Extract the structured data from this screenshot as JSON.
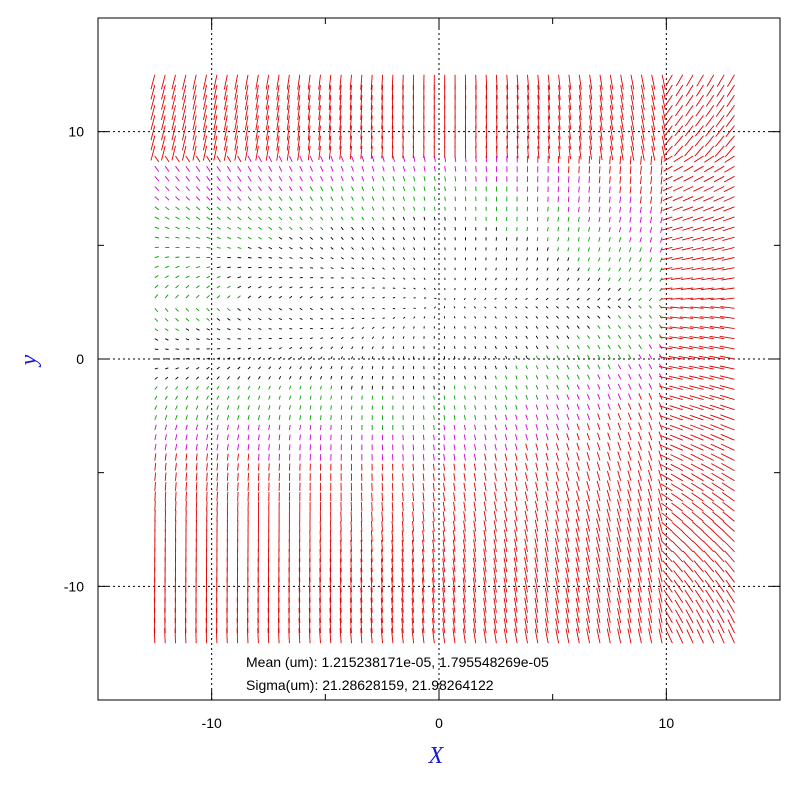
{
  "chart_data": {
    "type": "quiver",
    "xlabel": "X",
    "ylabel": "y",
    "xlim": [
      -15,
      15
    ],
    "ylim": [
      -15,
      15
    ],
    "grid": true,
    "xticks": [
      {
        "value": -10,
        "label": "-10"
      },
      {
        "value": 0,
        "label": "0"
      },
      {
        "value": 10,
        "label": "10"
      }
    ],
    "yticks": [
      {
        "value": 10,
        "label": "10"
      },
      {
        "value": 0,
        "label": "0"
      },
      {
        "value": -10,
        "label": "-10"
      }
    ],
    "field": {
      "x_range": [
        -12.5,
        13.0
      ],
      "y_range": [
        -12.5,
        12.5
      ],
      "columns": 57,
      "rows": 57,
      "description_note_free": true
    },
    "annotations": {
      "mean": "Mean (um): 1.215238171e-05, 1.795548269e-05",
      "sigma": "Sigma(um): 21.28628159, 21.98264122"
    },
    "colors": {
      "vector_large": "#e00000",
      "vector_medium": "#cc00cc",
      "vector_small": "#00a000",
      "vector_tiny": "#000000",
      "axis_title": "#1a1acc",
      "grid": "#000000"
    }
  }
}
